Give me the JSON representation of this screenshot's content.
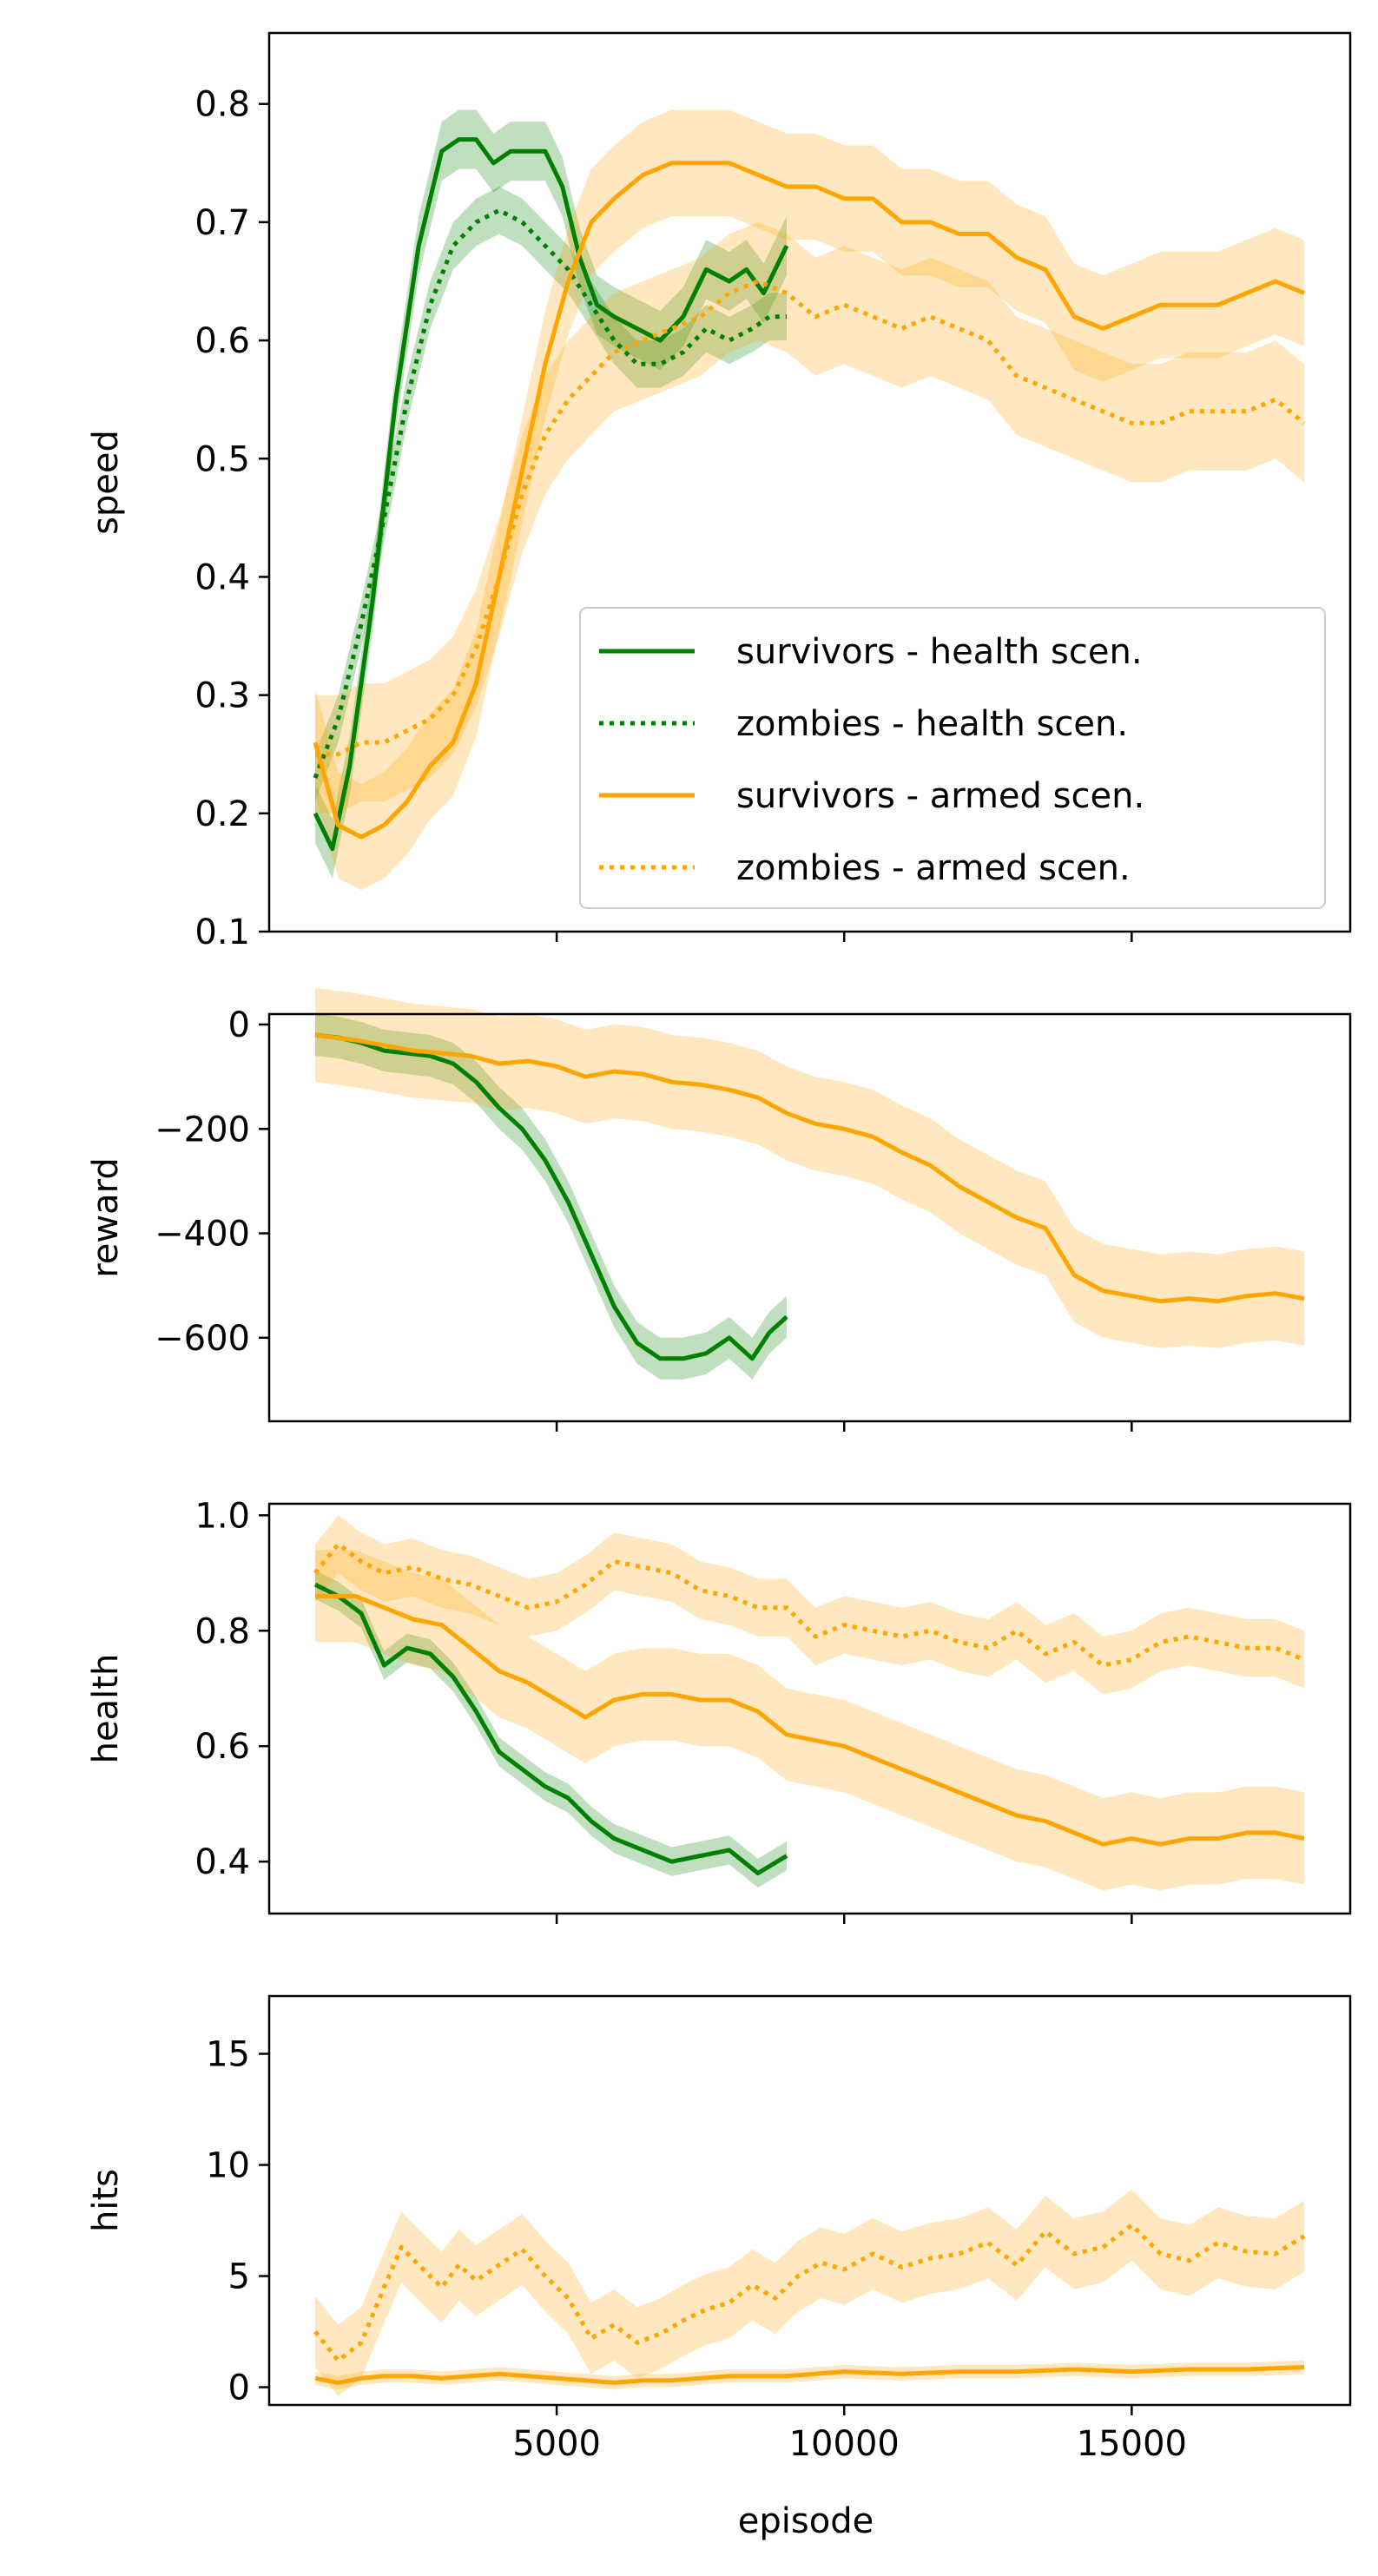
{
  "colors": {
    "health": "#008000",
    "armed": "#ffa500"
  },
  "x_axis": {
    "label": "episode",
    "range": [
      0,
      18800
    ],
    "ticks": [
      {
        "value": 5000,
        "label": "5000"
      },
      {
        "value": 10000,
        "label": "10000"
      },
      {
        "value": 15000,
        "label": "15000"
      }
    ]
  },
  "legend": {
    "placement": "lower-right",
    "entries": [
      {
        "label": "survivors - health scen.",
        "color": "#008000",
        "style": "solid"
      },
      {
        "label": "zombies - health scen.",
        "color": "#008000",
        "style": "dotted"
      },
      {
        "label": "survivors - armed scen.",
        "color": "#ffa500",
        "style": "solid"
      },
      {
        "label": "zombies - armed scen.",
        "color": "#ffa500",
        "style": "dotted"
      }
    ]
  },
  "chart_data": [
    {
      "type": "line",
      "ylabel": "speed",
      "xlim": [
        0,
        18800
      ],
      "ylim": [
        0.1,
        0.86
      ],
      "yticks": [
        {
          "value": 0.1,
          "label": "0.1"
        },
        {
          "value": 0.2,
          "label": "0.2"
        },
        {
          "value": 0.3,
          "label": "0.3"
        },
        {
          "value": 0.4,
          "label": "0.4"
        },
        {
          "value": 0.5,
          "label": "0.5"
        },
        {
          "value": 0.6,
          "label": "0.6"
        },
        {
          "value": 0.7,
          "label": "0.7"
        },
        {
          "value": 0.8,
          "label": "0.8"
        }
      ],
      "legend": true,
      "series": [
        {
          "name": "survivors - health scen.",
          "color": "#008000",
          "style": "solid",
          "band": 0.025,
          "x": [
            800,
            1100,
            1400,
            1800,
            2200,
            2600,
            3000,
            3300,
            3600,
            3900,
            4200,
            4500,
            4800,
            5100,
            5400,
            5700,
            6000,
            6400,
            6800,
            7200,
            7600,
            8000,
            8300,
            8600,
            9000
          ],
          "y": [
            0.2,
            0.17,
            0.24,
            0.38,
            0.55,
            0.68,
            0.76,
            0.77,
            0.77,
            0.75,
            0.76,
            0.76,
            0.76,
            0.73,
            0.67,
            0.63,
            0.62,
            0.61,
            0.6,
            0.62,
            0.66,
            0.65,
            0.66,
            0.64,
            0.68
          ]
        },
        {
          "name": "zombies - health scen.",
          "color": "#008000",
          "style": "dotted",
          "band": 0.02,
          "x": [
            800,
            1200,
            1600,
            2000,
            2400,
            2800,
            3200,
            3600,
            4000,
            4400,
            4800,
            5200,
            5600,
            6000,
            6400,
            6800,
            7200,
            7600,
            8000,
            8400,
            8700,
            9000
          ],
          "y": [
            0.23,
            0.28,
            0.36,
            0.45,
            0.55,
            0.63,
            0.68,
            0.7,
            0.71,
            0.7,
            0.68,
            0.66,
            0.63,
            0.6,
            0.58,
            0.58,
            0.59,
            0.61,
            0.6,
            0.61,
            0.62,
            0.62
          ]
        },
        {
          "name": "survivors - armed scen.",
          "color": "#ffa500",
          "style": "solid",
          "band": 0.045,
          "x": [
            800,
            1200,
            1600,
            2000,
            2400,
            2800,
            3200,
            3600,
            4000,
            4400,
            4800,
            5200,
            5600,
            6000,
            6500,
            7000,
            7500,
            8000,
            8500,
            9000,
            9500,
            10000,
            10500,
            11000,
            11500,
            12000,
            12500,
            13000,
            13500,
            14000,
            14500,
            15000,
            15500,
            16000,
            16500,
            17000,
            17500,
            18000
          ],
          "y": [
            0.26,
            0.19,
            0.18,
            0.19,
            0.21,
            0.24,
            0.26,
            0.31,
            0.4,
            0.49,
            0.58,
            0.65,
            0.7,
            0.72,
            0.74,
            0.75,
            0.75,
            0.75,
            0.74,
            0.73,
            0.73,
            0.72,
            0.72,
            0.7,
            0.7,
            0.69,
            0.69,
            0.67,
            0.66,
            0.62,
            0.61,
            0.62,
            0.63,
            0.63,
            0.63,
            0.64,
            0.65,
            0.64
          ]
        },
        {
          "name": "zombies - armed scen.",
          "color": "#ffa500",
          "style": "dotted",
          "band": 0.05,
          "x": [
            800,
            1200,
            1600,
            2000,
            2400,
            2800,
            3200,
            3600,
            4000,
            4400,
            4800,
            5200,
            5600,
            6000,
            6500,
            7000,
            7500,
            8000,
            8500,
            9000,
            9500,
            10000,
            10500,
            11000,
            11500,
            12000,
            12500,
            13000,
            13500,
            14000,
            14500,
            15000,
            15500,
            16000,
            16500,
            17000,
            17500,
            18000
          ],
          "y": [
            0.25,
            0.25,
            0.26,
            0.26,
            0.27,
            0.28,
            0.3,
            0.34,
            0.4,
            0.47,
            0.52,
            0.55,
            0.57,
            0.59,
            0.6,
            0.61,
            0.62,
            0.64,
            0.65,
            0.64,
            0.62,
            0.63,
            0.62,
            0.61,
            0.62,
            0.61,
            0.6,
            0.57,
            0.56,
            0.55,
            0.54,
            0.53,
            0.53,
            0.54,
            0.54,
            0.54,
            0.55,
            0.53
          ]
        }
      ]
    },
    {
      "type": "line",
      "ylabel": "reward",
      "xlim": [
        0,
        18800
      ],
      "ylim": [
        -760,
        20
      ],
      "yticks": [
        {
          "value": 0,
          "label": "0"
        },
        {
          "value": -200,
          "label": "−200"
        },
        {
          "value": -400,
          "label": "−400"
        },
        {
          "value": -600,
          "label": "−600"
        }
      ],
      "series": [
        {
          "color": "#008000",
          "style": "solid",
          "band": 40,
          "x": [
            800,
            1200,
            1600,
            2000,
            2400,
            2800,
            3200,
            3600,
            4000,
            4400,
            4800,
            5200,
            5600,
            6000,
            6400,
            6800,
            7200,
            7600,
            8000,
            8400,
            8700,
            9000
          ],
          "y": [
            -20,
            -25,
            -35,
            -50,
            -55,
            -60,
            -75,
            -110,
            -160,
            -200,
            -260,
            -340,
            -440,
            -540,
            -610,
            -640,
            -640,
            -630,
            -600,
            -640,
            -590,
            -560
          ]
        },
        {
          "color": "#ffa500",
          "style": "solid",
          "band": 90,
          "x": [
            800,
            1500,
            2000,
            2500,
            3000,
            3500,
            4000,
            4500,
            5000,
            5500,
            6000,
            6500,
            7000,
            7500,
            8000,
            8500,
            9000,
            9500,
            10000,
            10500,
            11000,
            11500,
            12000,
            12500,
            13000,
            13500,
            14000,
            14500,
            15000,
            15500,
            16000,
            16500,
            17000,
            17500,
            18000
          ],
          "y": [
            -20,
            -30,
            -40,
            -50,
            -55,
            -60,
            -75,
            -70,
            -80,
            -100,
            -90,
            -95,
            -110,
            -115,
            -125,
            -140,
            -170,
            -190,
            -200,
            -215,
            -245,
            -270,
            -310,
            -340,
            -370,
            -390,
            -480,
            -510,
            -520,
            -530,
            -525,
            -530,
            -520,
            -515,
            -525
          ]
        }
      ]
    },
    {
      "type": "line",
      "ylabel": "health",
      "xlim": [
        0,
        18800
      ],
      "ylim": [
        0.31,
        1.02
      ],
      "yticks": [
        {
          "value": 0.4,
          "label": "0.4"
        },
        {
          "value": 0.6,
          "label": "0.6"
        },
        {
          "value": 0.8,
          "label": "0.8"
        },
        {
          "value": 1.0,
          "label": "1.0"
        }
      ],
      "series": [
        {
          "color": "#008000",
          "style": "solid",
          "band": 0.025,
          "x": [
            800,
            1200,
            1600,
            2000,
            2400,
            2800,
            3200,
            3600,
            4000,
            4400,
            4800,
            5200,
            5600,
            6000,
            6500,
            7000,
            7500,
            8000,
            8500,
            9000
          ],
          "y": [
            0.88,
            0.86,
            0.83,
            0.74,
            0.77,
            0.76,
            0.72,
            0.66,
            0.59,
            0.56,
            0.53,
            0.51,
            0.47,
            0.44,
            0.42,
            0.4,
            0.41,
            0.42,
            0.38,
            0.41
          ]
        },
        {
          "color": "#ffa500",
          "style": "solid",
          "band": 0.08,
          "x": [
            800,
            1500,
            2000,
            2500,
            3000,
            3500,
            4000,
            4500,
            5000,
            5500,
            6000,
            6500,
            7000,
            7500,
            8000,
            8500,
            9000,
            9500,
            10000,
            10500,
            11000,
            11500,
            12000,
            12500,
            13000,
            13500,
            14000,
            14500,
            15000,
            15500,
            16000,
            16500,
            17000,
            17500,
            18000
          ],
          "y": [
            0.86,
            0.86,
            0.84,
            0.82,
            0.81,
            0.77,
            0.73,
            0.71,
            0.68,
            0.65,
            0.68,
            0.69,
            0.69,
            0.68,
            0.68,
            0.66,
            0.62,
            0.61,
            0.6,
            0.58,
            0.56,
            0.54,
            0.52,
            0.5,
            0.48,
            0.47,
            0.45,
            0.43,
            0.44,
            0.43,
            0.44,
            0.44,
            0.45,
            0.45,
            0.44
          ]
        },
        {
          "color": "#ffa500",
          "style": "dotted",
          "band": 0.05,
          "x": [
            800,
            1200,
            1600,
            2000,
            2500,
            3000,
            3500,
            4000,
            4500,
            5000,
            5500,
            6000,
            6500,
            7000,
            7500,
            8000,
            8500,
            9000,
            9500,
            10000,
            10500,
            11000,
            11500,
            12000,
            12500,
            13000,
            13500,
            14000,
            14500,
            15000,
            15500,
            16000,
            16500,
            17000,
            17500,
            18000
          ],
          "y": [
            0.9,
            0.95,
            0.92,
            0.9,
            0.91,
            0.89,
            0.88,
            0.86,
            0.84,
            0.85,
            0.88,
            0.92,
            0.91,
            0.9,
            0.87,
            0.86,
            0.84,
            0.84,
            0.79,
            0.81,
            0.8,
            0.79,
            0.8,
            0.78,
            0.77,
            0.8,
            0.76,
            0.78,
            0.74,
            0.75,
            0.78,
            0.79,
            0.78,
            0.77,
            0.77,
            0.75
          ]
        }
      ]
    },
    {
      "type": "line",
      "ylabel": "hits",
      "xlabel": "episode",
      "xlim": [
        0,
        18800
      ],
      "ylim": [
        -0.8,
        17.6
      ],
      "yticks": [
        {
          "value": 0,
          "label": "0"
        },
        {
          "value": 5,
          "label": "5"
        },
        {
          "value": 10,
          "label": "10"
        },
        {
          "value": 15,
          "label": "15"
        }
      ],
      "series": [
        {
          "color": "#ffa500",
          "style": "solid",
          "band": 0.3,
          "x": [
            800,
            1200,
            1600,
            2000,
            2500,
            3000,
            3500,
            4000,
            4500,
            5000,
            5500,
            6000,
            6500,
            7000,
            7500,
            8000,
            8500,
            9000,
            10000,
            11000,
            12000,
            13000,
            14000,
            15000,
            16000,
            17000,
            18000
          ],
          "y": [
            0.4,
            0.2,
            0.4,
            0.5,
            0.5,
            0.4,
            0.5,
            0.6,
            0.5,
            0.4,
            0.3,
            0.2,
            0.3,
            0.3,
            0.4,
            0.5,
            0.5,
            0.5,
            0.7,
            0.6,
            0.7,
            0.7,
            0.8,
            0.7,
            0.8,
            0.8,
            0.9
          ]
        },
        {
          "color": "#ffa500",
          "style": "dotted",
          "band": 1.6,
          "x": [
            800,
            1200,
            1600,
            2000,
            2300,
            2600,
            3000,
            3300,
            3600,
            4000,
            4400,
            4800,
            5200,
            5600,
            6000,
            6400,
            6800,
            7200,
            7600,
            8000,
            8400,
            8800,
            9200,
            9600,
            10000,
            10500,
            11000,
            11500,
            12000,
            12500,
            13000,
            13500,
            14000,
            14500,
            15000,
            15500,
            16000,
            16500,
            17000,
            17500,
            18000
          ],
          "y": [
            2.5,
            1.2,
            2.0,
            4.5,
            6.3,
            5.5,
            4.5,
            5.5,
            4.8,
            5.5,
            6.2,
            5.0,
            4.0,
            2.2,
            2.8,
            2.0,
            2.4,
            3.0,
            3.5,
            3.8,
            4.6,
            4.0,
            5.0,
            5.6,
            5.3,
            6.0,
            5.4,
            5.8,
            6.0,
            6.5,
            5.5,
            7.0,
            6.0,
            6.3,
            7.3,
            6.0,
            5.7,
            6.5,
            6.1,
            6.0,
            6.8
          ]
        }
      ]
    }
  ]
}
